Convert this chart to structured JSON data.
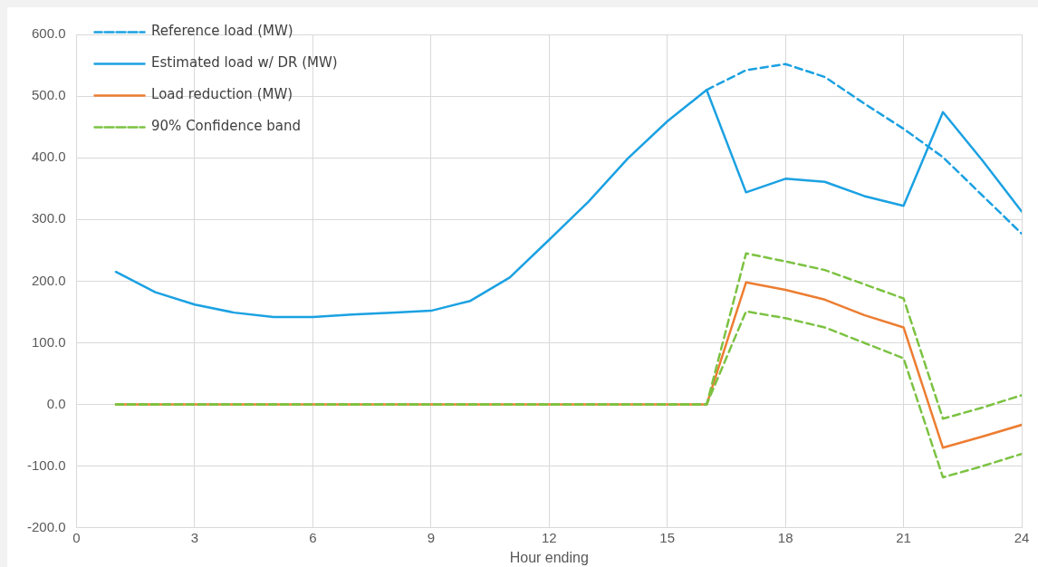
{
  "chart_data": {
    "type": "line",
    "xlabel": "Hour ending",
    "x": [
      1,
      2,
      3,
      4,
      5,
      6,
      7,
      8,
      9,
      10,
      11,
      12,
      13,
      14,
      15,
      16,
      17,
      18,
      19,
      20,
      21,
      22,
      23,
      24
    ],
    "series": [
      {
        "name": "Reference load (MW)",
        "color": "#1ba1e2",
        "line_style": "dashed",
        "values": [
          null,
          null,
          null,
          null,
          null,
          null,
          null,
          null,
          null,
          null,
          null,
          null,
          null,
          null,
          null,
          510,
          542,
          552,
          531,
          488,
          447,
          401,
          339,
          277
        ]
      },
      {
        "name": "Estimated load w/ DR (MW)",
        "color": "#1ba1e2",
        "line_style": "solid",
        "values": [
          215,
          182,
          162,
          149,
          142,
          142,
          146,
          149,
          152,
          168,
          206,
          267,
          329,
          399,
          459,
          510,
          344,
          366,
          361,
          338,
          322,
          474,
          396,
          313
        ]
      },
      {
        "name": "Load reduction (MW)",
        "color": "#ed7d31",
        "line_style": "solid",
        "values": [
          0,
          0,
          0,
          0,
          0,
          0,
          0,
          0,
          0,
          0,
          0,
          0,
          0,
          0,
          0,
          0,
          198,
          186,
          170,
          145,
          125,
          -70,
          -52,
          -33
        ]
      },
      {
        "name": "90% Confidence band",
        "color": "#7cc242",
        "line_style": "dashed",
        "values": [
          0,
          0,
          0,
          0,
          0,
          0,
          0,
          0,
          0,
          0,
          0,
          0,
          0,
          0,
          0,
          0,
          245,
          232,
          218,
          195,
          172,
          -23,
          -5,
          15
        ]
      },
      {
        "color": "#7cc242",
        "line_style": "dashed",
        "values": [
          0,
          0,
          0,
          0,
          0,
          0,
          0,
          0,
          0,
          0,
          0,
          0,
          0,
          0,
          0,
          0,
          151,
          140,
          125,
          100,
          75,
          -118,
          -100,
          -80
        ]
      }
    ],
    "xlim": [
      0,
      24
    ],
    "xticks": [
      0,
      3,
      6,
      9,
      12,
      15,
      18,
      21,
      24
    ],
    "ylim": [
      -200,
      600
    ],
    "yticks": [
      {
        "value": -200,
        "label": "-200.0"
      },
      {
        "value": -100,
        "label": "-100.0"
      },
      {
        "value": 0,
        "label": "0.0"
      },
      {
        "value": 100,
        "label": "100.0"
      },
      {
        "value": 200,
        "label": "200.0"
      },
      {
        "value": 300,
        "label": "300.0"
      },
      {
        "value": 400,
        "label": "400.0"
      },
      {
        "value": 500,
        "label": "500.0"
      },
      {
        "value": 600,
        "label": "600.0"
      }
    ],
    "grid": true,
    "legend": "top left",
    "marker": "none"
  }
}
